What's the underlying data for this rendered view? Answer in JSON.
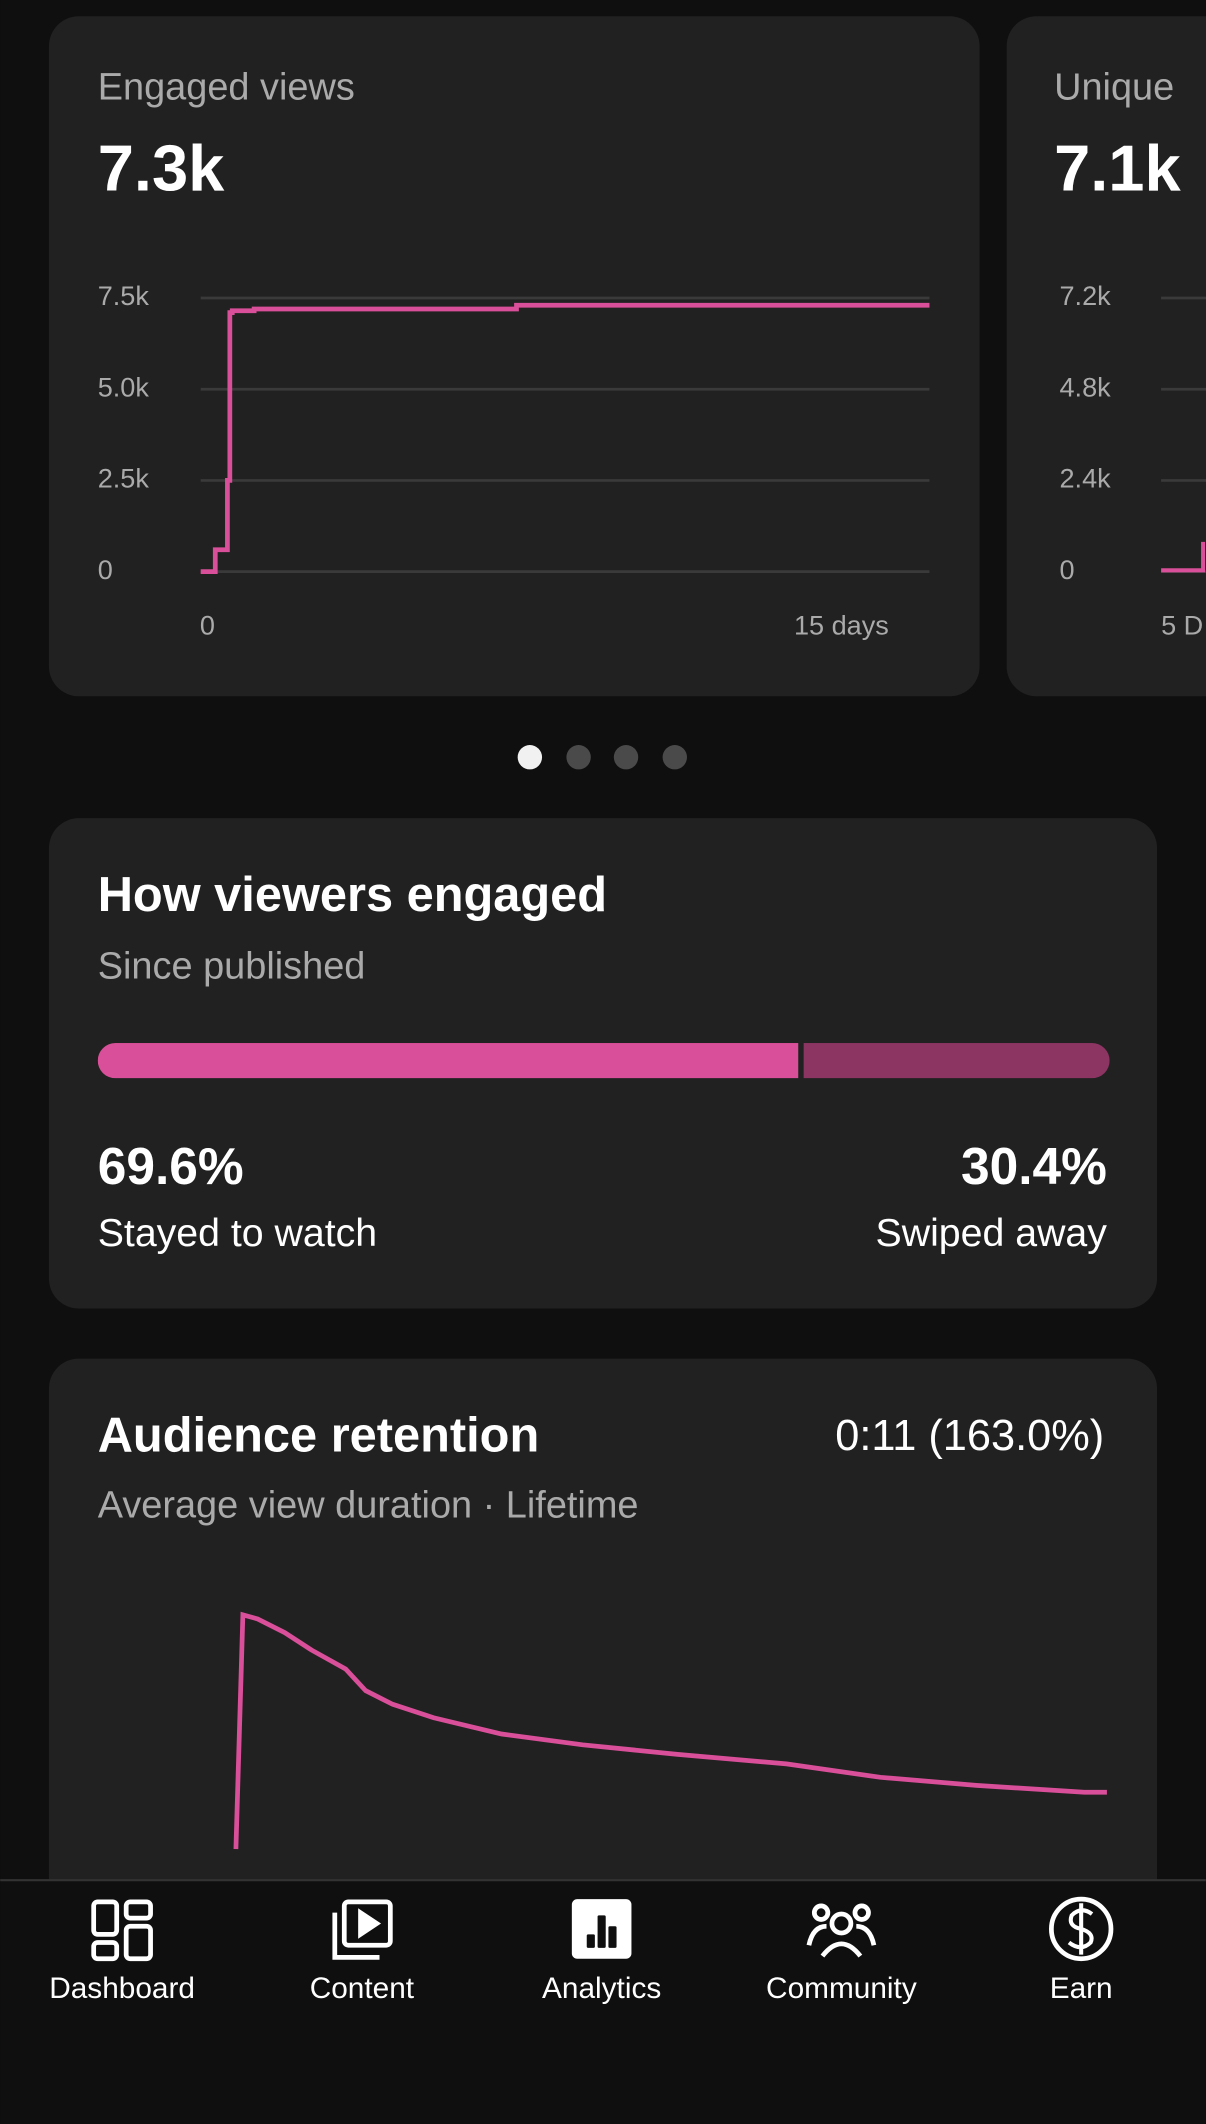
{
  "carousel": {
    "cards": [
      {
        "title": "Engaged views",
        "value": "7.3k",
        "chart": {
          "type": "line",
          "color": "#d94f99",
          "ylim": [
            0,
            7500
          ],
          "yticks": [
            0,
            {
              "value": 2500,
              "label": "2.5k"
            },
            {
              "value": 5000,
              "label": "5.0k"
            },
            {
              "value": 7500,
              "label": "7.5k"
            }
          ],
          "xlim": [
            0,
            15
          ],
          "xticks": [
            0,
            {
              "value": 15,
              "label": "15 days"
            }
          ],
          "x": [
            0,
            0.25,
            0.3,
            0.45,
            0.55,
            0.6,
            0.65,
            1.1,
            6.5,
            15
          ],
          "values": [
            0,
            0,
            600,
            600,
            2500,
            7100,
            7150,
            7200,
            7300,
            7300
          ]
        }
      },
      {
        "title": "Unique",
        "value": "7.1k",
        "chart": {
          "type": "line",
          "ylim": [
            0,
            7200
          ],
          "yticks": [
            0,
            {
              "value": 2400,
              "label": "2.4k"
            },
            {
              "value": 4800,
              "label": "4.8k"
            },
            {
              "value": 7200,
              "label": "7.2k"
            }
          ],
          "x_label": "5 D"
        }
      }
    ]
  },
  "engagement": {
    "title": "How viewers engaged",
    "subtitle": "Since published",
    "segments": [
      {
        "label": "Stayed to watch",
        "value": 69.6,
        "value_label": "69.6%",
        "color": "#d94f99"
      },
      {
        "label": "Swiped away",
        "value": 30.4,
        "value_label": "30.4%",
        "color": "#8c3563"
      }
    ]
  },
  "retention": {
    "title": "Audience retention",
    "summary": "0:11 (163.0%)",
    "subtitle": "Average view duration · Lifetime",
    "chart": {
      "type": "line",
      "color": "#d94f99",
      "xlim": [
        0,
        100
      ],
      "ylim": [
        100,
        240
      ],
      "x": [
        0,
        0.8,
        2.5,
        5.6,
        8.7,
        12.6,
        14.9,
        18,
        22.7,
        30.5,
        39.8,
        50.7,
        63.2,
        74,
        85,
        97.4,
        100
      ],
      "values": [
        114.5,
        239.9,
        237.7,
        230.4,
        221,
        210.9,
        199.3,
        192,
        184.8,
        176.1,
        170.3,
        165.2,
        160.1,
        152.9,
        148.6,
        144.9,
        144.9
      ]
    }
  },
  "nav": {
    "items": [
      "Dashboard",
      "Content",
      "Analytics",
      "Community",
      "Earn"
    ],
    "active": 2
  }
}
